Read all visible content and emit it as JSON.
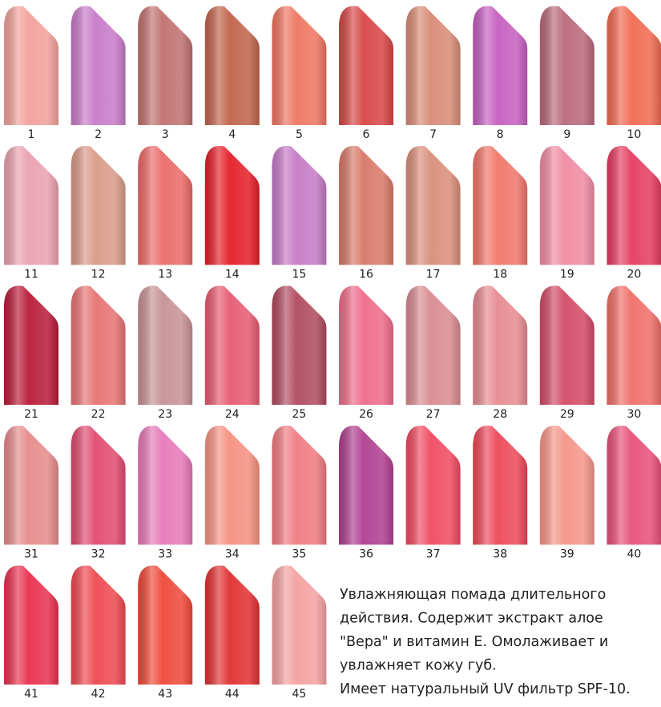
{
  "swatches": [
    {
      "label": "1",
      "color": "#f2a09a"
    },
    {
      "label": "2",
      "color": "#c77ac8"
    },
    {
      "label": "3",
      "color": "#c0706f"
    },
    {
      "label": "4",
      "color": "#c0634a"
    },
    {
      "label": "5",
      "color": "#ee7560"
    },
    {
      "label": "6",
      "color": "#d84545"
    },
    {
      "label": "7",
      "color": "#d88a76"
    },
    {
      "label": "8",
      "color": "#c55ec0"
    },
    {
      "label": "9",
      "color": "#b9687a"
    },
    {
      "label": "10",
      "color": "#f06a50"
    },
    {
      "label": "11",
      "color": "#eaa0b0"
    },
    {
      "label": "12",
      "color": "#d99a88"
    },
    {
      "label": "13",
      "color": "#ea6a68"
    },
    {
      "label": "14",
      "color": "#e41e28"
    },
    {
      "label": "15",
      "color": "#c57ac5"
    },
    {
      "label": "16",
      "color": "#d87868"
    },
    {
      "label": "17",
      "color": "#d98d7a"
    },
    {
      "label": "18",
      "color": "#f07568"
    },
    {
      "label": "19",
      "color": "#f08aa2"
    },
    {
      "label": "20",
      "color": "#e53c60"
    },
    {
      "label": "21",
      "color": "#b81a38"
    },
    {
      "label": "22",
      "color": "#e77272"
    },
    {
      "label": "23",
      "color": "#c79095"
    },
    {
      "label": "24",
      "color": "#e65a70"
    },
    {
      "label": "25",
      "color": "#b04a60"
    },
    {
      "label": "26",
      "color": "#ef6a8a"
    },
    {
      "label": "27",
      "color": "#d88a90"
    },
    {
      "label": "28",
      "color": "#e68a90"
    },
    {
      "label": "29",
      "color": "#d24a66"
    },
    {
      "label": "30",
      "color": "#ef6e68"
    },
    {
      "label": "31",
      "color": "#e58a8a"
    },
    {
      "label": "32",
      "color": "#e04a70"
    },
    {
      "label": "33",
      "color": "#e678b8"
    },
    {
      "label": "34",
      "color": "#f59080"
    },
    {
      "label": "35",
      "color": "#ef7a80"
    },
    {
      "label": "36",
      "color": "#b03e90"
    },
    {
      "label": "37",
      "color": "#f04a60"
    },
    {
      "label": "38",
      "color": "#ec4858"
    },
    {
      "label": "39",
      "color": "#f59488"
    },
    {
      "label": "40",
      "color": "#e7507a"
    },
    {
      "label": "41",
      "color": "#e8304e"
    },
    {
      "label": "42",
      "color": "#ee4850"
    },
    {
      "label": "43",
      "color": "#ee4838"
    },
    {
      "label": "44",
      "color": "#e03030"
    },
    {
      "label": "45",
      "color": "#f4a0a0"
    }
  ],
  "description": {
    "lines": [
      "Увлажняющая помада длительного",
      "действия. Содержит экстракт алое",
      "\"Вера\" и витамин Е. Омолаживает и",
      "увлажняет кожу губ.",
      "Имеет натуральный UV фильтр SPF-10."
    ]
  }
}
